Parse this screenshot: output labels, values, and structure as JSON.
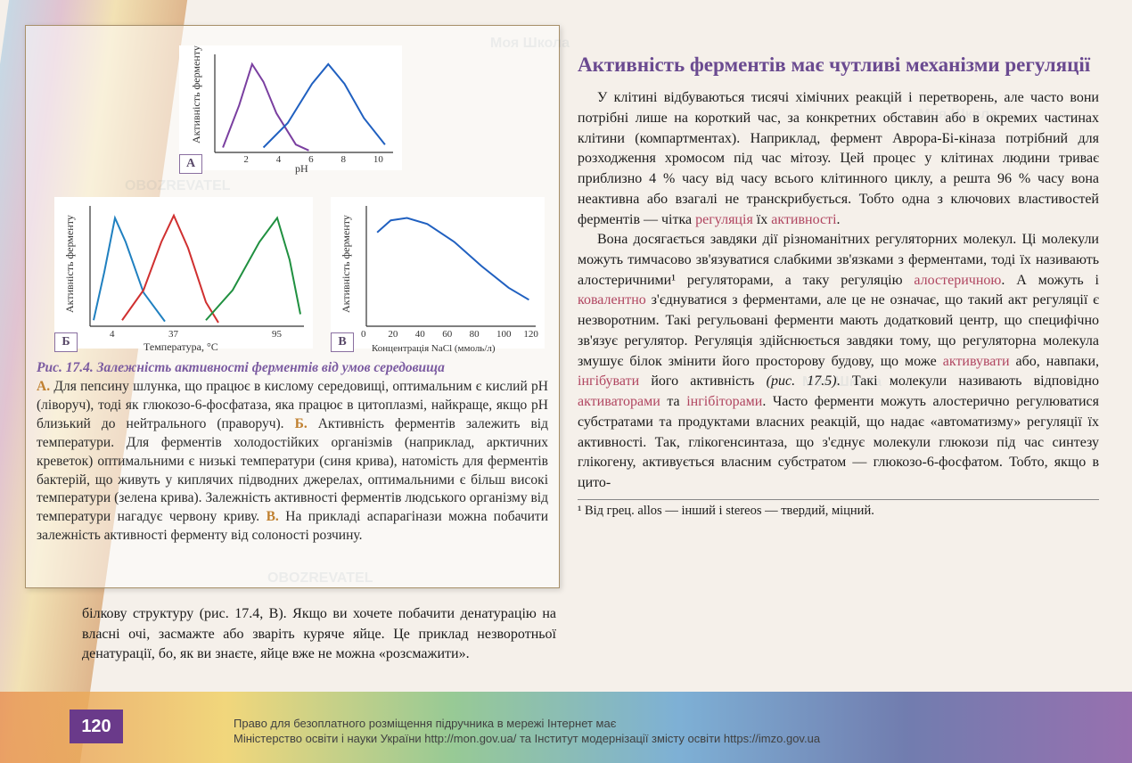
{
  "page_number": "120",
  "watermarks": {
    "text1": "Моя Школа",
    "text2": "OBOZREVATEL"
  },
  "figure": {
    "chart_a": {
      "type": "line",
      "tag": "А",
      "y_label": "Активність ферменту",
      "x_label": "pH",
      "xlim": [
        0,
        11
      ],
      "ylim": [
        0,
        100
      ],
      "x_ticks": [
        "2",
        "4",
        "6",
        "8",
        "10"
      ],
      "series": [
        {
          "color": "#7a3fa0",
          "points": [
            [
              0.5,
              5
            ],
            [
              1.5,
              48
            ],
            [
              2.3,
              90
            ],
            [
              3,
              72
            ],
            [
              3.8,
              40
            ],
            [
              5,
              8
            ],
            [
              5.8,
              2
            ]
          ]
        },
        {
          "color": "#2060c0",
          "points": [
            [
              3,
              5
            ],
            [
              4.5,
              30
            ],
            [
              6,
              70
            ],
            [
              7,
              90
            ],
            [
              8,
              70
            ],
            [
              9.2,
              35
            ],
            [
              10.5,
              8
            ]
          ]
        }
      ]
    },
    "chart_b": {
      "type": "line",
      "tag": "Б",
      "y_label": "Активність ферменту",
      "x_label": "Температура, °C",
      "xlim": [
        -10,
        110
      ],
      "ylim": [
        0,
        100
      ],
      "x_ticks_pos": [
        4,
        37,
        95
      ],
      "x_ticks": [
        "4",
        "37",
        "95"
      ],
      "series": [
        {
          "color": "#2080c0",
          "points": [
            [
              -8,
              5
            ],
            [
              -2,
              45
            ],
            [
              4,
              90
            ],
            [
              10,
              70
            ],
            [
              20,
              28
            ],
            [
              32,
              4
            ]
          ]
        },
        {
          "color": "#d03030",
          "points": [
            [
              8,
              5
            ],
            [
              20,
              30
            ],
            [
              30,
              70
            ],
            [
              37,
              92
            ],
            [
              45,
              65
            ],
            [
              55,
              20
            ],
            [
              62,
              3
            ]
          ]
        },
        {
          "color": "#209040",
          "points": [
            [
              55,
              5
            ],
            [
              70,
              30
            ],
            [
              85,
              70
            ],
            [
              95,
              90
            ],
            [
              102,
              55
            ],
            [
              108,
              10
            ]
          ]
        }
      ]
    },
    "chart_c": {
      "type": "line",
      "tag": "В",
      "y_label": "Активність ферменту",
      "x_label": "Концентрація NaCl (ммоль/л)",
      "xlim": [
        0,
        125
      ],
      "ylim": [
        0,
        100
      ],
      "x_ticks": [
        "0",
        "20",
        "40",
        "60",
        "80",
        "100",
        "120"
      ],
      "series": [
        {
          "color": "#2060c0",
          "points": [
            [
              8,
              78
            ],
            [
              18,
              88
            ],
            [
              30,
              90
            ],
            [
              45,
              85
            ],
            [
              65,
              70
            ],
            [
              85,
              50
            ],
            [
              105,
              32
            ],
            [
              120,
              22
            ]
          ]
        }
      ]
    },
    "caption_title": "Рис. 17.4. Залежність активності ферментів від умов середовища",
    "caption_a": "Для пепсину шлунка, що працює в кислому середовищі, оптимальним є кислий pH (ліворуч), тоді як глюкозо-6-фосфатаза, яка працює в цитоплазмі, найкраще, якщо pH близький до нейтрального (праворуч).",
    "caption_b": "Активність ферментів залежить від температури. Для ферментів холодостійких організмів (наприклад, арктичних креветок) оптимальними є низькі температури (синя крива), натомість для ферментів бактерій, що живуть у киплячих підводних джерелах, оптимальними є більш високі температури (зелена крива). Залежність активності ферментів людського організму від температури нагадує червону криву.",
    "caption_c": "На прикладі аспарагінази можна побачити залежність активності ферменту від солоності розчину."
  },
  "left_extra_text": "білкову структуру (рис. 17.4, В). Якщо ви хочете побачити денатурацію на власні очі, засмажте або зваріть куряче яйце. Це приклад незворотньої денатурації, бо, як ви знаєте, яйце вже не можна «розсмажити».",
  "right": {
    "heading": "Активність ферментів має чутливі механізми регуляції",
    "p1_a": "У клітині відбуваються тисячі хімічних реакцій і перетворень, але часто вони потрібні лише на короткий час, за конкретних обставин або в окремих частинах клітини (компартментах). Наприклад, фермент Аврора-Бі-кіназа потрібний для розходження хромосом під час мітозу. Цей процес у клітинах людини триває приблизно 4 % часу від часу всього клітинного циклу, а решта 96 % часу вона неактивна або взагалі не транскрибується. Тобто одна з ключових властивостей ферментів — чітка ",
    "hl1": "регуляція",
    "p1_b": " їх ",
    "hl2": "активності",
    "p1_c": ".",
    "p2_a": "Вона досягається завдяки дії різноманітних регуляторних молекул. Ці молекули можуть тимчасово зв'язуватися слабкими зв'язками з ферментами, тоді їх називають алостеричними¹ регуляторами, а таку регуляцію ",
    "hl3": "алостеричною",
    "p2_b": ". А можуть і ",
    "hl4": "ковалентно",
    "p2_c": " з'єднуватися з ферментами, але це не означає, що такий акт регуляції є незворотним. Такі регульовані ферменти мають додатковий центр, що специфічно зв'язує регулятор. Регуляція здійснюється завдяки тому, що регуляторна молекула змушує білок змінити його просторову будову, що може ",
    "hl5": "активувати",
    "p2_d": " або, навпаки, ",
    "hl6": "інгібувати",
    "p2_e": " його активність ",
    "ital1": "(рис. 17.5)",
    "p2_f": ". Такі молекули називають відповідно ",
    "hl7": "активаторами",
    "p2_g": " та ",
    "hl8": "інгібіторами",
    "p2_h": ". Часто ферменти можуть алостерично регулюватися субстратами та продуктами власних реакцій, що надає «автоматизму» регуляції їх активності. Так, глікогенсинтаза, що з'єднує молекули глюкози під час синтезу глікогену, активується власним субстратом — глюкозо-6-фосфатом. Тобто, якщо в цито-",
    "footnote": "¹ Від грец. allos — інший і stereos — твердий, міцний."
  },
  "footer": {
    "line1": "Право для безоплатного розміщення підручника в мережі Інтернет має",
    "line2": "Міністерство освіти і науки України http://mon.gov.ua/ та Інститут модернізації змісту освіти https://imzo.gov.ua"
  }
}
